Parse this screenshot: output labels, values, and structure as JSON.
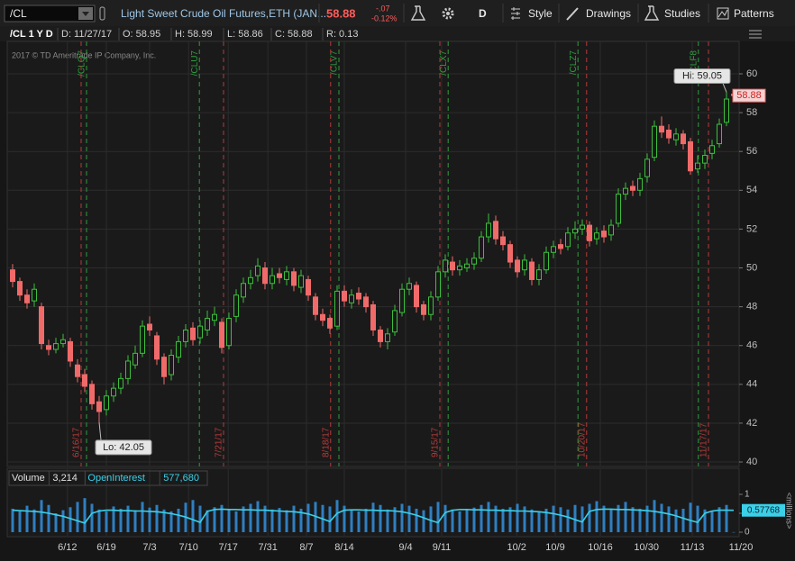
{
  "toolbar": {
    "symbol": "/CL",
    "description": "Light Sweet Crude Oil Futures,ETH (JAN...",
    "change": "-.07",
    "change_pct": "-0.12%",
    "interval": "D",
    "buttons": [
      "Style",
      "Drawings",
      "Studies",
      "Patterns"
    ]
  },
  "info_bar": [
    "/CL 1 Y D",
    "D: 11/27/17",
    "O: 58.95",
    "H: 58.99",
    "L: 58.86",
    "C: 58.88",
    "R: 0.13"
  ],
  "copyright": "2017 © TD Ameritrade IP Company, Inc.",
  "chart_data": [
    {
      "type": "candlestick",
      "up_color": "#3cbf3c",
      "down_color": "#f06a6a",
      "xlim": [
        -0.75,
        100.75
      ],
      "ylim": [
        39.77,
        61.67
      ],
      "yticks": [
        40,
        42,
        44,
        46,
        48,
        50,
        52,
        54,
        56,
        58,
        60
      ],
      "grid": true,
      "annotations": [
        "Hi: 59.05",
        "Lo: 42.05"
      ],
      "expiration_lines": {
        "color": "#2e9e3e",
        "items": [
          {
            "x": 10.25,
            "label": "/CLQ7"
          },
          {
            "x": 25.9,
            "label": "/CLU7"
          },
          {
            "x": 45.25,
            "label": "/CLV7"
          },
          {
            "x": 60.4,
            "label": "/CLX7"
          },
          {
            "x": 78.4,
            "label": "/CLZ7"
          },
          {
            "x": 95.1,
            "label": "/CLF8"
          }
        ]
      },
      "roll_lines": {
        "color": "#b83a3a",
        "items": [
          {
            "x": 9.5,
            "label": "6/16/17"
          },
          {
            "x": 29.25,
            "label": "7/21/17"
          },
          {
            "x": 44.1,
            "label": "8/18/17"
          },
          {
            "x": 59.25,
            "label": "9/15/17"
          },
          {
            "x": 79.6,
            "label": "10/20/17"
          },
          {
            "x": 96.5,
            "label": "11/17/17"
          }
        ]
      },
      "open": [
        49.9,
        49.3,
        48.6,
        48.3,
        48.0,
        46.0,
        45.8,
        46.1,
        46.2,
        45.0,
        44.5,
        44.0,
        43.1,
        42.7,
        43.4,
        43.8,
        44.3,
        45.0,
        45.6,
        47.1,
        46.5,
        45.4,
        44.5,
        45.4,
        46.2,
        46.9,
        46.4,
        46.8,
        47.3,
        47.2,
        46.0,
        47.5,
        48.5,
        49.2,
        49.6,
        50.0,
        49.2,
        49.7,
        49.4,
        49.8,
        49.0,
        49.4,
        48.5,
        47.6,
        47.4,
        47.0,
        48.8,
        48.2,
        48.7,
        48.5,
        48.1,
        46.8,
        46.2,
        46.7,
        47.7,
        48.9,
        49.1,
        48.1,
        47.6,
        48.5,
        49.8,
        50.3,
        49.9,
        50.0,
        50.2,
        50.5,
        51.6,
        52.4,
        51.6,
        51.2,
        50.4,
        49.9,
        50.3,
        49.4,
        49.9,
        50.8,
        51.2,
        51.1,
        51.8,
        52.0,
        52.2,
        51.5,
        51.9,
        51.7,
        52.3,
        53.8,
        54.2,
        54.0,
        54.7,
        55.7,
        57.3,
        57.1,
        56.6,
        56.9,
        56.5,
        55.1,
        55.4,
        55.9,
        56.4,
        57.5,
        58.95
      ],
      "high": [
        50.2,
        49.5,
        48.9,
        49.2,
        48.2,
        46.3,
        46.4,
        46.6,
        46.4,
        45.3,
        44.8,
        44.2,
        43.4,
        43.7,
        44.1,
        44.6,
        45.5,
        46.0,
        47.3,
        47.5,
        46.7,
        45.6,
        45.8,
        46.5,
        47.1,
        47.2,
        47.3,
        47.8,
        48.0,
        47.4,
        47.7,
        48.9,
        49.5,
        49.9,
        50.5,
        50.3,
        50.0,
        50.0,
        50.1,
        50.0,
        49.9,
        49.6,
        48.7,
        47.9,
        47.6,
        49.1,
        49.1,
        48.9,
        49.0,
        48.7,
        48.3,
        47.0,
        46.9,
        48.1,
        49.2,
        49.5,
        49.3,
        48.3,
        48.8,
        50.1,
        50.7,
        50.6,
        50.4,
        50.5,
        50.8,
        51.9,
        52.8,
        52.7,
        51.9,
        51.4,
        50.6,
        50.7,
        50.5,
        50.2,
        51.1,
        51.4,
        51.5,
        52.1,
        52.4,
        52.5,
        52.4,
        52.1,
        52.2,
        52.5,
        54.1,
        54.4,
        54.5,
        54.9,
        55.9,
        57.6,
        57.8,
        57.4,
        57.2,
        57.1,
        56.7,
        55.8,
        56.1,
        56.6,
        57.7,
        59.05,
        58.99
      ],
      "low": [
        49.0,
        48.3,
        47.9,
        48.0,
        45.8,
        45.5,
        45.6,
        45.9,
        44.9,
        44.1,
        43.6,
        42.7,
        42.05,
        42.4,
        43.1,
        43.5,
        44.0,
        44.8,
        45.4,
        46.5,
        45.0,
        44.0,
        44.2,
        45.1,
        45.9,
        46.0,
        46.1,
        46.5,
        47.0,
        45.6,
        45.8,
        47.2,
        48.2,
        48.9,
        49.3,
        48.9,
        48.9,
        49.2,
        49.1,
        48.8,
        48.7,
        48.3,
        47.3,
        47.0,
        46.6,
        46.8,
        48.0,
        47.9,
        48.1,
        47.7,
        46.5,
        45.9,
        45.8,
        46.5,
        47.5,
        48.6,
        47.7,
        47.3,
        47.3,
        48.3,
        49.5,
        49.6,
        49.6,
        49.8,
        49.9,
        50.3,
        51.3,
        51.2,
        50.9,
        50.0,
        49.5,
        49.6,
        49.1,
        49.1,
        49.7,
        50.5,
        50.7,
        50.9,
        51.5,
        51.7,
        51.1,
        51.2,
        51.3,
        51.4,
        52.1,
        53.5,
        53.7,
        53.7,
        54.4,
        55.5,
        56.7,
        56.4,
        56.3,
        56.1,
        54.8,
        54.9,
        55.1,
        55.6,
        56.2,
        57.3,
        58.86
      ],
      "close": [
        49.3,
        48.6,
        48.2,
        48.9,
        46.1,
        45.8,
        46.1,
        46.3,
        45.2,
        44.4,
        43.9,
        43.0,
        42.6,
        43.4,
        43.8,
        44.3,
        45.2,
        45.6,
        47.0,
        46.8,
        45.3,
        44.4,
        45.5,
        46.2,
        46.8,
        46.3,
        47.0,
        47.4,
        47.6,
        45.9,
        47.4,
        48.6,
        49.2,
        49.5,
        50.1,
        49.2,
        49.6,
        49.5,
        49.8,
        49.1,
        49.6,
        48.6,
        47.6,
        47.3,
        46.9,
        48.8,
        48.3,
        48.6,
        48.4,
        48.0,
        46.8,
        46.2,
        46.6,
        47.8,
        48.9,
        49.2,
        48.0,
        47.6,
        48.5,
        49.8,
        50.4,
        49.9,
        50.1,
        50.2,
        50.5,
        51.6,
        52.3,
        51.5,
        51.2,
        50.3,
        49.8,
        50.4,
        49.4,
        49.9,
        50.8,
        51.1,
        51.0,
        51.8,
        52.0,
        52.2,
        51.4,
        51.8,
        51.6,
        52.2,
        53.8,
        54.1,
        54.0,
        54.6,
        55.6,
        57.3,
        57.0,
        56.7,
        56.9,
        56.4,
        55.0,
        55.4,
        55.8,
        56.3,
        57.4,
        58.7,
        58.88
      ]
    },
    {
      "type": "bar",
      "ylabel": "<millions>",
      "xlim": [
        -0.75,
        100.75
      ],
      "ylim": [
        -0.095,
        1.19
      ],
      "yticks": [
        0,
        0.5,
        1
      ],
      "xticks": [
        {
          "value": 7.6,
          "label": "6/12"
        },
        {
          "value": 13,
          "label": "6/19"
        },
        {
          "value": 19,
          "label": "7/3"
        },
        {
          "value": 24.4,
          "label": "7/10"
        },
        {
          "value": 29.9,
          "label": "7/17"
        },
        {
          "value": 35.4,
          "label": "7/31"
        },
        {
          "value": 40.75,
          "label": "8/7"
        },
        {
          "value": 46,
          "label": "8/14"
        },
        {
          "value": 54.5,
          "label": "9/4"
        },
        {
          "value": 59.5,
          "label": "9/11"
        },
        {
          "value": 69.9,
          "label": "10/2"
        },
        {
          "value": 75.25,
          "label": "10/9"
        },
        {
          "value": 81.5,
          "label": "10/16"
        },
        {
          "value": 87.9,
          "label": "10/30"
        },
        {
          "value": 94.25,
          "label": "11/13"
        },
        {
          "value": 101,
          "label": "11/20"
        }
      ],
      "series": [
        {
          "name": "Volume",
          "color": "#2f7fc1",
          "value_label": "3,214",
          "values": [
            0.62,
            0.55,
            0.7,
            0.6,
            0.85,
            0.72,
            0.5,
            0.58,
            0.66,
            0.8,
            0.9,
            0.75,
            0.6,
            0.55,
            0.68,
            0.62,
            0.7,
            0.58,
            0.8,
            0.65,
            0.72,
            0.6,
            0.55,
            0.62,
            0.78,
            0.85,
            0.7,
            0.58,
            0.66,
            0.72,
            0.6,
            0.55,
            0.68,
            0.75,
            0.82,
            0.7,
            0.6,
            0.64,
            0.58,
            0.7,
            0.62,
            0.75,
            0.8,
            0.72,
            0.68,
            0.85,
            0.7,
            0.6,
            0.55,
            0.62,
            0.78,
            0.72,
            0.6,
            0.66,
            0.75,
            0.7,
            0.62,
            0.58,
            0.68,
            0.8,
            0.72,
            0.6,
            0.55,
            0.6,
            0.65,
            0.72,
            0.8,
            0.7,
            0.62,
            0.66,
            0.75,
            0.68,
            0.6,
            0.55,
            0.62,
            0.7,
            0.66,
            0.6,
            0.72,
            0.68,
            0.75,
            0.82,
            0.7,
            0.6,
            0.72,
            0.8,
            0.66,
            0.62,
            0.7,
            0.85,
            0.75,
            0.68,
            0.6,
            0.62,
            0.78,
            0.7,
            0.6,
            0.55,
            0.66,
            0.72,
            0.003214
          ]
        },
        {
          "name": "OpenInterest",
          "color": "#3ad0e8",
          "value_label": "577,680",
          "values": [
            0.58,
            0.57,
            0.56,
            0.55,
            0.53,
            0.5,
            0.46,
            0.42,
            0.36,
            0.3,
            0.24,
            0.5,
            0.56,
            0.58,
            0.58,
            0.57,
            0.57,
            0.56,
            0.56,
            0.55,
            0.54,
            0.52,
            0.49,
            0.45,
            0.4,
            0.33,
            0.26,
            0.55,
            0.6,
            0.61,
            0.6,
            0.6,
            0.59,
            0.59,
            0.58,
            0.58,
            0.57,
            0.56,
            0.55,
            0.54,
            0.52,
            0.48,
            0.42,
            0.35,
            0.28,
            0.5,
            0.58,
            0.59,
            0.59,
            0.58,
            0.58,
            0.57,
            0.57,
            0.56,
            0.54,
            0.5,
            0.45,
            0.38,
            0.31,
            0.25,
            0.52,
            0.58,
            0.6,
            0.6,
            0.59,
            0.59,
            0.58,
            0.58,
            0.57,
            0.57,
            0.56,
            0.56,
            0.55,
            0.54,
            0.52,
            0.49,
            0.45,
            0.4,
            0.33,
            0.27,
            0.55,
            0.6,
            0.61,
            0.61,
            0.6,
            0.6,
            0.59,
            0.58,
            0.57,
            0.55,
            0.52,
            0.48,
            0.43,
            0.37,
            0.31,
            0.26,
            0.5,
            0.56,
            0.58,
            0.58,
            0.57768
          ]
        }
      ]
    }
  ]
}
